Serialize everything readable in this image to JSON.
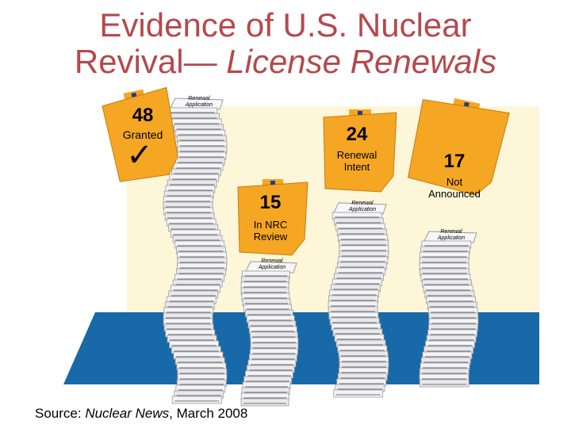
{
  "title": {
    "line1": "Evidence of U.S. Nuclear",
    "line2_prefix": "Revival— ",
    "line2_italic": "License Renewals"
  },
  "folders": [
    {
      "count": "48",
      "status": "Granted",
      "mark": "checkmark-icon"
    },
    {
      "count": "15",
      "status_line1": "In NRC",
      "status_line2": "Review"
    },
    {
      "count": "24",
      "status_line1": "Renewal",
      "status_line2": "Intent"
    },
    {
      "count": "17",
      "status_line1": "Not",
      "status_line2": "Announced"
    }
  ],
  "paper_label_line1": "Renewal",
  "paper_label_line2": "Application",
  "source": {
    "prefix": "Source: ",
    "publication": "Nuclear News",
    "suffix": ", March 2008"
  },
  "colors": {
    "title": "#b5494c",
    "folder": "#f5a623",
    "floor": "#1769a8",
    "backdrop": "#fdf6d8"
  }
}
